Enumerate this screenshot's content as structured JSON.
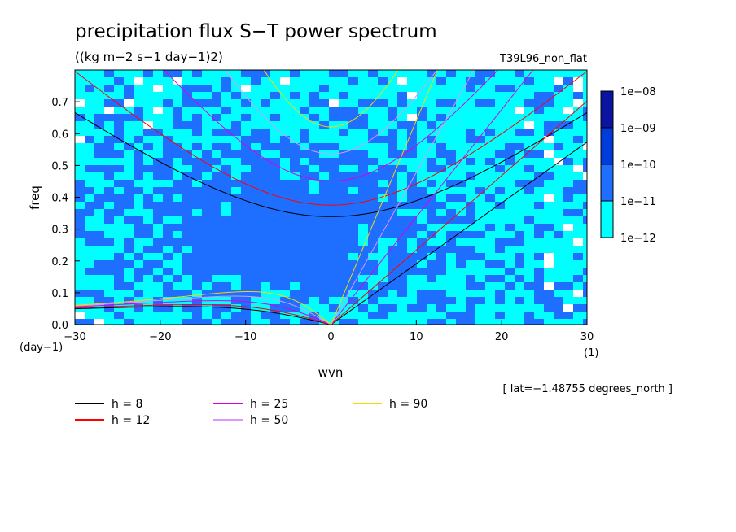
{
  "chart_data": {
    "type": "heatmap",
    "title": "precipitation flux S−T power spectrum",
    "subtitle": "((kg m−2 s−1 day−1)2)",
    "run_label": "T39L96_non_flat",
    "xlabel": "wvn",
    "ylabel": "freq",
    "x_unit": "(1)",
    "y_unit": "(day−1)",
    "xlim": [
      -30,
      30
    ],
    "ylim": [
      0,
      0.8
    ],
    "xticks": [
      {
        "value": -30,
        "label": "−30"
      },
      {
        "value": -20,
        "label": "−20"
      },
      {
        "value": -10,
        "label": "−10"
      },
      {
        "value": 0,
        "label": "0"
      },
      {
        "value": 10,
        "label": "10"
      },
      {
        "value": 20,
        "label": "20"
      },
      {
        "value": 30,
        "label": "30"
      }
    ],
    "yticks": [
      {
        "value": 0.0,
        "label": "0.0"
      },
      {
        "value": 0.1,
        "label": "0.1"
      },
      {
        "value": 0.2,
        "label": "0.2"
      },
      {
        "value": 0.3,
        "label": "0.3"
      },
      {
        "value": 0.4,
        "label": "0.4"
      },
      {
        "value": 0.5,
        "label": "0.5"
      },
      {
        "value": 0.6,
        "label": "0.6"
      },
      {
        "value": 0.7,
        "label": "0.7"
      }
    ],
    "colorbar": {
      "levels": [
        "1e−12",
        "1e−11",
        "1e−10",
        "1e−09",
        "1e−08"
      ],
      "colors": [
        "#00ffff",
        "#1e6eff",
        "#003cdc",
        "#0a14a0",
        "#5014be"
      ]
    },
    "annotation": "[ lat=−1.48755 degrees_north ]",
    "dispersion_curves": [
      {
        "name": "h =  8",
        "h": 8,
        "color": "#000000"
      },
      {
        "name": "h = 12",
        "h": 12,
        "color": "#ff0000"
      },
      {
        "name": "h = 25",
        "h": 25,
        "color": "#dc00dc"
      },
      {
        "name": "h = 50",
        "h": 50,
        "color": "#dc96ff"
      },
      {
        "name": "h = 90",
        "h": 90,
        "color": "#f0dc00"
      }
    ],
    "grid": false,
    "legend_position": "bottom-left"
  }
}
